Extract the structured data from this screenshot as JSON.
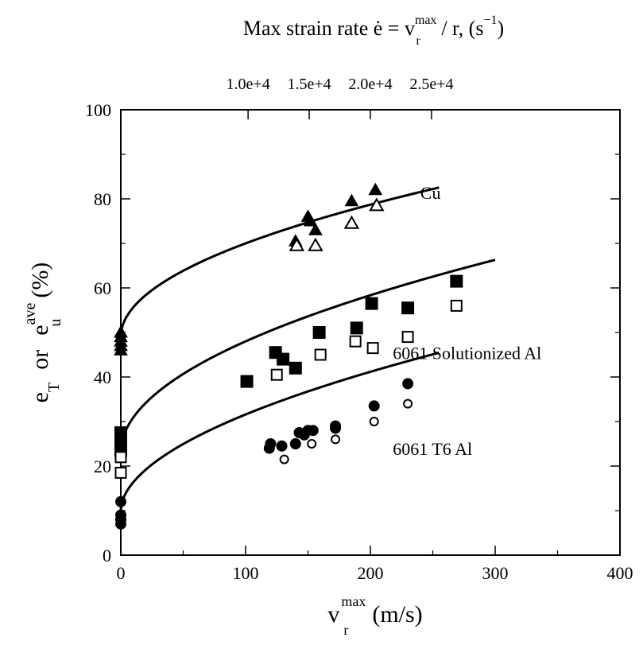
{
  "chart_data": {
    "type": "scatter",
    "xlabel": "v",
    "xlabel_sup": "max",
    "xlabel_sub": "r",
    "xlabel_unit": "(m/s)",
    "ylabel_a": "e",
    "ylabel_a_sub": "T",
    "ylabel_or": "or",
    "ylabel_b": "e",
    "ylabel_b_sup": "ave",
    "ylabel_b_sub": "u",
    "ylabel_unit": "(%)",
    "top_axis_title": {
      "prefix": "Max  strain  rate  ",
      "edot": "ė",
      "eq": " = v",
      "sup": "max",
      "sub": "r",
      "tail": " / r,  ",
      "unit_open": "(s",
      "unit_sup": "−1",
      "unit_close": ")"
    },
    "xlim": [
      0,
      400
    ],
    "ylim": [
      0,
      100
    ],
    "x_ticks": [
      "0",
      "100",
      "200",
      "300",
      "400"
    ],
    "x_tick_values": [
      0,
      100,
      200,
      300,
      400
    ],
    "y_ticks": [
      "0",
      "20",
      "40",
      "60",
      "80",
      "100"
    ],
    "y_tick_values": [
      0,
      20,
      40,
      60,
      80,
      100
    ],
    "top_ticks": [
      "1.0e+4",
      "1.5e+4",
      "2.0e+4",
      "2.5e+4"
    ],
    "top_tick_x_positions": [
      102,
      151,
      200,
      249
    ],
    "annotations": [
      {
        "text": "Cu",
        "x": 240,
        "y": 80
      },
      {
        "text": "6061 Solutionized Al",
        "x": 218,
        "y": 44
      },
      {
        "text": "6061 T6 Al",
        "x": 218,
        "y": 22.5
      }
    ],
    "series": [
      {
        "marker": "triangle-filled",
        "color": "#000000",
        "points": [
          [
            0,
            50
          ],
          [
            0,
            49
          ],
          [
            0,
            48
          ],
          [
            0,
            47
          ],
          [
            0,
            46
          ],
          [
            140,
            70.5
          ],
          [
            150,
            76
          ],
          [
            152,
            75
          ],
          [
            156,
            73
          ],
          [
            185,
            79.5
          ],
          [
            204,
            82
          ]
        ]
      },
      {
        "marker": "triangle-open",
        "color": "#000000",
        "points": [
          [
            141,
            69.5
          ],
          [
            156,
            69.5
          ],
          [
            185,
            74.5
          ],
          [
            205,
            78.5
          ]
        ]
      },
      {
        "marker": "square-filled",
        "color": "#000000",
        "points": [
          [
            0,
            27.5
          ],
          [
            0,
            25
          ],
          [
            0,
            23.5
          ],
          [
            101,
            39
          ],
          [
            124,
            45.5
          ],
          [
            130,
            44
          ],
          [
            140,
            42
          ],
          [
            159,
            50
          ],
          [
            189,
            51
          ],
          [
            201,
            56.5
          ],
          [
            230,
            55.5
          ],
          [
            269,
            61.5
          ]
        ]
      },
      {
        "marker": "square-open",
        "color": "#000000",
        "points": [
          [
            0,
            22
          ],
          [
            0,
            18.5
          ],
          [
            125,
            40.5
          ],
          [
            160,
            45
          ],
          [
            188,
            48
          ],
          [
            202,
            46.5
          ],
          [
            230,
            49
          ],
          [
            269,
            56
          ]
        ]
      },
      {
        "marker": "circle-filled",
        "color": "#000000",
        "points": [
          [
            0,
            12
          ],
          [
            0,
            9
          ],
          [
            0,
            8
          ],
          [
            0,
            7
          ],
          [
            119,
            24
          ],
          [
            120,
            25
          ],
          [
            129,
            24.5
          ],
          [
            140,
            25
          ],
          [
            143,
            27.5
          ],
          [
            147,
            27
          ],
          [
            150,
            28
          ],
          [
            154,
            28
          ],
          [
            172,
            28.5
          ],
          [
            172,
            29
          ],
          [
            203,
            33.5
          ],
          [
            230,
            38.5
          ]
        ]
      },
      {
        "marker": "circle-open",
        "color": "#000000",
        "points": [
          [
            131,
            21.5
          ],
          [
            153,
            25
          ],
          [
            172,
            26
          ],
          [
            203,
            30
          ],
          [
            230,
            34
          ]
        ]
      }
    ],
    "curves": [
      {
        "label": "Cu",
        "y0": 49,
        "a": 2.1,
        "b": 0.5,
        "xmax": 255
      },
      {
        "label": "6061 Solutionized Al",
        "y0": 23,
        "a": 2.5,
        "b": 0.5,
        "xmax": 300
      },
      {
        "label": "6061 T6 Al",
        "y0": 10,
        "a": 1.88,
        "b": 0.53,
        "xmax": 255
      }
    ]
  }
}
